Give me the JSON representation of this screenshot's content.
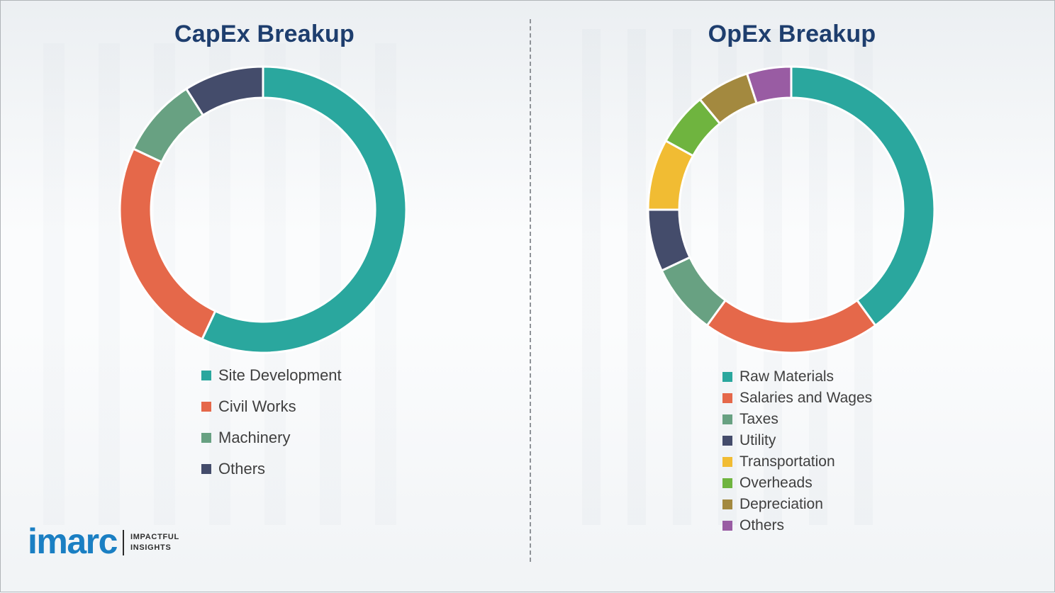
{
  "chart_data": [
    {
      "type": "pie",
      "subtype": "donut",
      "title": "CapEx Breakup",
      "labels": [
        "Site Development",
        "Civil Works",
        "Machinery",
        "Others"
      ],
      "values": [
        57,
        25,
        9,
        9
      ],
      "colors": [
        "#2AA79E",
        "#E5684A",
        "#68A182",
        "#444C6B"
      ],
      "legend_position": "bottom-left",
      "start_angle_deg": 0,
      "direction": "clockwise",
      "donut_hole_ratio": 0.78
    },
    {
      "type": "pie",
      "subtype": "donut",
      "title": "OpEx Breakup",
      "labels": [
        "Raw Materials",
        "Salaries and Wages",
        "Taxes",
        "Utility",
        "Transportation",
        "Overheads",
        "Depreciation",
        "Others"
      ],
      "values": [
        40,
        20,
        8,
        7,
        8,
        6,
        6,
        5
      ],
      "colors": [
        "#2AA79E",
        "#E5684A",
        "#68A182",
        "#444C6B",
        "#F1BC33",
        "#6FB43F",
        "#A3893F",
        "#995CA3"
      ],
      "legend_position": "bottom-left",
      "start_angle_deg": 0,
      "direction": "clockwise",
      "donut_hole_ratio": 0.78
    }
  ],
  "logo": {
    "brand": "imarc",
    "tagline": [
      "IMPACTFUL",
      "INSIGHTS"
    ],
    "brand_color": "#1A7FC3"
  },
  "colors": {
    "title_text": "#1E3E6E",
    "legend_text": "#3f3f3f",
    "divider": "#8f9398",
    "background": "#fbfcfd"
  }
}
